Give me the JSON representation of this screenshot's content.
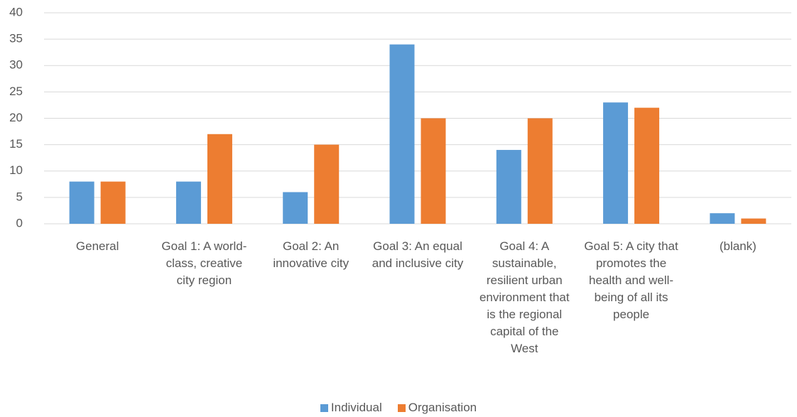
{
  "chart_data": {
    "type": "bar",
    "categories": [
      "General",
      "Goal 1: A world-class, creative city region",
      "Goal 2: An innovative city",
      "Goal 3: An equal and inclusive city",
      "Goal 4: A sustainable, resilient urban environment that is the regional capital of the West",
      "Goal 5: A city that promotes the health and well-being of all its people",
      "(blank)"
    ],
    "series": [
      {
        "name": "Individual",
        "color": "#5b9bd5",
        "values": [
          8,
          8,
          6,
          34,
          14,
          23,
          2
        ]
      },
      {
        "name": "Organisation",
        "color": "#ed7d31",
        "values": [
          8,
          17,
          15,
          20,
          20,
          22,
          1
        ]
      }
    ],
    "ylim": [
      0,
      40
    ],
    "yticks": [
      0,
      5,
      10,
      15,
      20,
      25,
      30,
      35,
      40
    ],
    "grid": true,
    "legend": "bottom"
  }
}
